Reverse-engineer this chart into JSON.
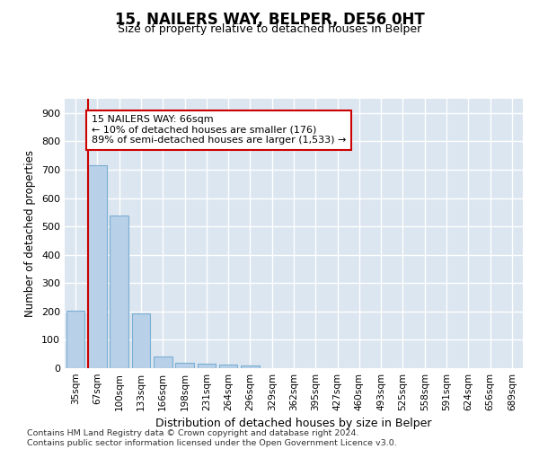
{
  "title_line1": "15, NAILERS WAY, BELPER, DE56 0HT",
  "title_line2": "Size of property relative to detached houses in Belper",
  "xlabel": "Distribution of detached houses by size in Belper",
  "ylabel": "Number of detached properties",
  "categories": [
    "35sqm",
    "67sqm",
    "100sqm",
    "133sqm",
    "166sqm",
    "198sqm",
    "231sqm",
    "264sqm",
    "296sqm",
    "329sqm",
    "362sqm",
    "395sqm",
    "427sqm",
    "460sqm",
    "493sqm",
    "525sqm",
    "558sqm",
    "591sqm",
    "624sqm",
    "656sqm",
    "689sqm"
  ],
  "values": [
    203,
    717,
    537,
    194,
    42,
    20,
    15,
    13,
    9,
    0,
    0,
    0,
    0,
    0,
    0,
    0,
    0,
    0,
    0,
    0,
    0
  ],
  "bar_color": "#b8d0e8",
  "bar_edge_color": "#7aafd4",
  "vline_color": "#cc0000",
  "annotation_line1": "15 NAILERS WAY: 66sqm",
  "annotation_line2": "← 10% of detached houses are smaller (176)",
  "annotation_line3": "89% of semi-detached houses are larger (1,533) →",
  "annotation_box_color": "#cc0000",
  "ylim": [
    0,
    950
  ],
  "yticks": [
    0,
    100,
    200,
    300,
    400,
    500,
    600,
    700,
    800,
    900
  ],
  "footer": "Contains HM Land Registry data © Crown copyright and database right 2024.\nContains public sector information licensed under the Open Government Licence v3.0.",
  "bg_color": "#dce6f0",
  "grid_color": "#ffffff",
  "title_fontsize": 12,
  "subtitle_fontsize": 9
}
